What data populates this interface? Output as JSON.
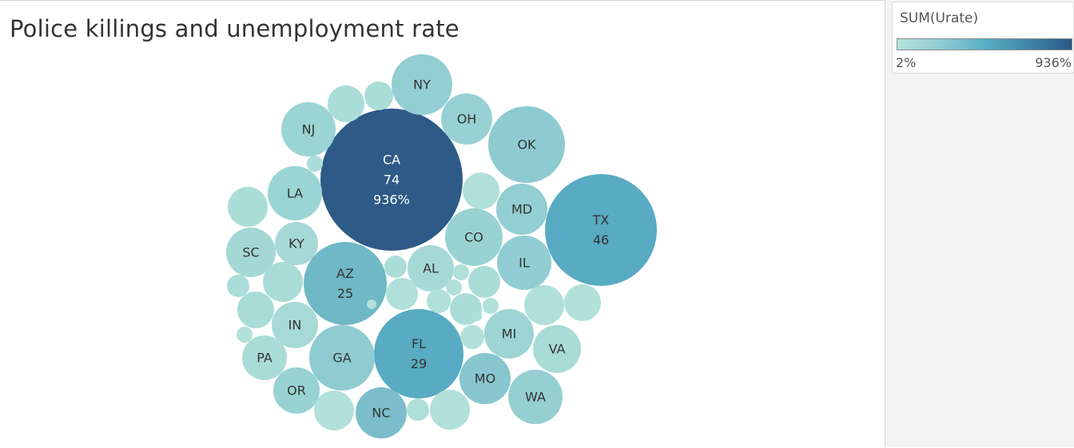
{
  "chart_data": {
    "type": "bubble",
    "title": "Police killings and unemployment rate",
    "size_measure": "killings",
    "color_measure": "SUM(Urate)",
    "bubbles": [
      {
        "state": "CA",
        "killings": 74,
        "urate": "936%",
        "color": "#2d5a87"
      },
      {
        "state": "TX",
        "killings": 46,
        "color": "#58abc2"
      },
      {
        "state": "FL",
        "killings": 29,
        "color": "#58abc2"
      },
      {
        "state": "AZ",
        "killings": 25,
        "color": "#6fb8c6"
      },
      {
        "state": "OK",
        "color": "#8ecbd1"
      },
      {
        "state": "GA",
        "color": "#8fccd1"
      },
      {
        "state": "NY",
        "color": "#93ced2"
      },
      {
        "state": "NC",
        "color": "#7bbdca"
      },
      {
        "state": "MO",
        "color": "#88c6cf"
      },
      {
        "state": "CO",
        "color": "#99d2d3"
      },
      {
        "state": "WA",
        "color": "#95cfd2"
      },
      {
        "state": "IL",
        "color": "#91cdd2"
      },
      {
        "state": "MD",
        "color": "#93ced2"
      },
      {
        "state": "NJ",
        "color": "#9bd4d4"
      },
      {
        "state": "OH",
        "color": "#97d1d3"
      },
      {
        "state": "LA",
        "color": "#9bd4d4"
      },
      {
        "state": "MI",
        "color": "#9dd5d4"
      },
      {
        "state": "AL",
        "color": "#a5d9d6"
      },
      {
        "state": "VA",
        "color": "#a9dbd7"
      },
      {
        "state": "KY",
        "color": "#a6d9d6"
      },
      {
        "state": "SC",
        "color": "#a3d8d5"
      },
      {
        "state": "IN",
        "color": "#a7dad6"
      },
      {
        "state": "PA",
        "color": "#aadcd7"
      },
      {
        "state": "OR",
        "color": "#98d2d3"
      },
      {
        "state": "",
        "color": "#abddd8"
      },
      {
        "state": "",
        "color": "#abddd8"
      },
      {
        "state": "",
        "color": "#abddd8"
      },
      {
        "state": "",
        "color": "#b0e0d9"
      },
      {
        "state": "",
        "color": "#abddd8"
      },
      {
        "state": "",
        "color": "#aadcd7"
      },
      {
        "state": "",
        "color": "#abddd8"
      },
      {
        "state": "",
        "color": "#a9dbd7"
      },
      {
        "state": "",
        "color": "#b2e1da"
      },
      {
        "state": "",
        "color": "#abddd8"
      },
      {
        "state": "",
        "color": "#b0e0d9"
      },
      {
        "state": "",
        "color": "#aadcd7"
      },
      {
        "state": "",
        "color": "#b0e0d9"
      },
      {
        "state": "",
        "color": "#b2e1da"
      },
      {
        "state": "",
        "color": "#b0e0d9"
      },
      {
        "state": "",
        "color": "#abddd8"
      },
      {
        "state": "",
        "color": "#b2e1da"
      },
      {
        "state": "",
        "color": "#b2e1da"
      },
      {
        "state": "",
        "color": "#b0e0d9"
      },
      {
        "state": "",
        "color": "#b2e1da"
      },
      {
        "state": "",
        "color": "#aedfd8"
      },
      {
        "state": "",
        "color": "#b2e1da"
      },
      {
        "state": "",
        "color": "#b2e1da"
      },
      {
        "state": "",
        "color": "#aedfd8"
      },
      {
        "state": "",
        "color": "#b2e1da"
      }
    ]
  },
  "legend": {
    "title": "SUM(Urate)",
    "min_label": "2%",
    "max_label": "936%",
    "color_low": "#b4e3da",
    "color_high": "#2c5985"
  }
}
